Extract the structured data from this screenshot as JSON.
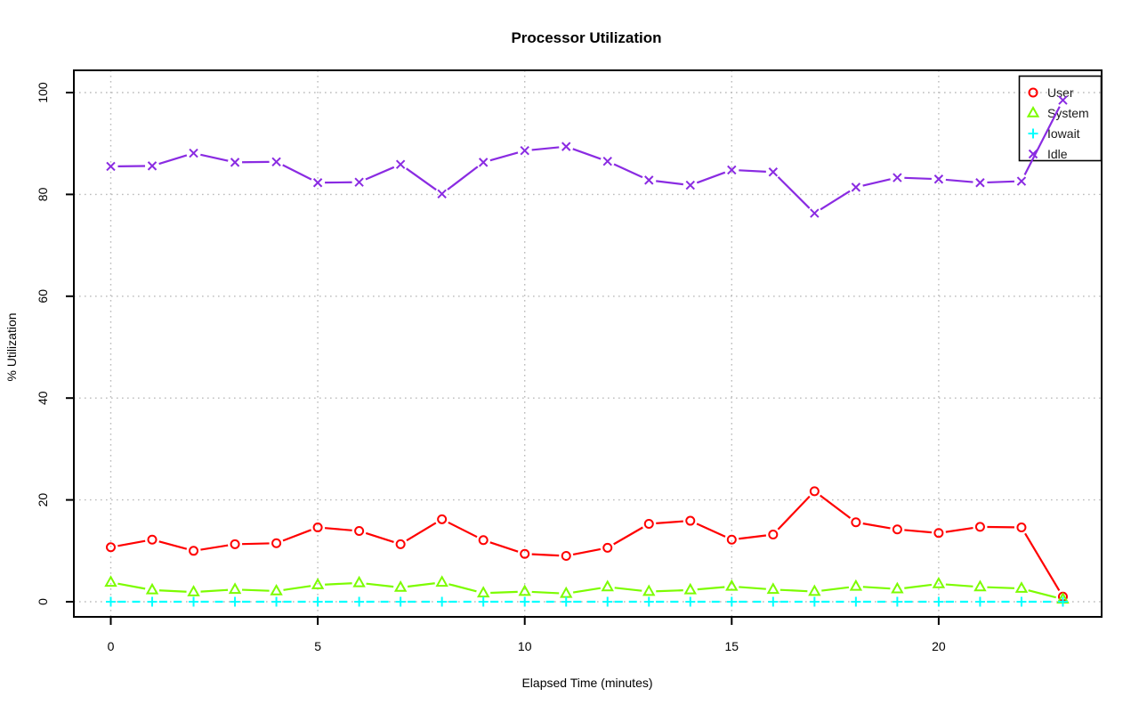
{
  "title": "Processor Utilization",
  "chart_data": {
    "type": "line",
    "title": "Processor Utilization",
    "xlabel": "Elapsed Time (minutes)",
    "ylabel": "% Utilization",
    "x_ticks": [
      0,
      5,
      10,
      15,
      20
    ],
    "y_ticks": [
      0,
      20,
      40,
      60,
      80,
      100
    ],
    "xlim": [
      -0.9,
      23.9
    ],
    "ylim": [
      -3.5,
      104
    ],
    "grid": true,
    "grid_style": "dotted",
    "legend_position": "topright",
    "legend_entries": [
      "User",
      "System",
      "Iowait",
      "Idle"
    ],
    "x": [
      0,
      1,
      2,
      3,
      4,
      5,
      6,
      7,
      8,
      9,
      10,
      11,
      12,
      13,
      14,
      15,
      16,
      17,
      18,
      19,
      20,
      21,
      22,
      23
    ],
    "series": [
      {
        "name": "User",
        "color": "#FF0000",
        "marker": "circle",
        "line": "solid",
        "values": [
          10.7,
          12.2,
          10.0,
          11.3,
          11.5,
          14.6,
          13.9,
          11.3,
          16.2,
          12.1,
          9.4,
          9.0,
          10.6,
          15.3,
          15.9,
          12.2,
          13.2,
          21.7,
          15.6,
          14.2,
          13.5,
          14.7,
          14.6,
          1.0
        ]
      },
      {
        "name": "System",
        "color": "#7CFC00",
        "marker": "triangle",
        "line": "solid",
        "values": [
          3.8,
          2.3,
          1.9,
          2.4,
          2.1,
          3.3,
          3.7,
          2.8,
          3.8,
          1.7,
          2.0,
          1.6,
          2.9,
          2.0,
          2.3,
          3.0,
          2.4,
          2.0,
          3.0,
          2.5,
          3.5,
          2.9,
          2.6,
          0.5
        ]
      },
      {
        "name": "Iowait",
        "color": "#00FFFF",
        "marker": "plus",
        "line": "dashed",
        "values": [
          0,
          0,
          0,
          0,
          0,
          0,
          0,
          0,
          0,
          0,
          0,
          0,
          0,
          0,
          0,
          0,
          0,
          0,
          0,
          0,
          0,
          0,
          0,
          0
        ]
      },
      {
        "name": "Idle",
        "color": "#8A2BE2",
        "marker": "x",
        "line": "solid",
        "values": [
          85.5,
          85.6,
          88.1,
          86.3,
          86.4,
          82.3,
          82.4,
          85.9,
          80.1,
          86.3,
          88.6,
          89.4,
          86.5,
          82.8,
          81.8,
          84.8,
          84.4,
          76.3,
          81.4,
          83.3,
          83.0,
          82.3,
          82.6,
          98.5
        ]
      }
    ],
    "colors": {
      "user": "#FF0000",
      "system": "#7CFC00",
      "iowait": "#00FFFF",
      "idle": "#8A2BE2",
      "gridline": "#BBBBBB",
      "axis": "#000000"
    }
  }
}
